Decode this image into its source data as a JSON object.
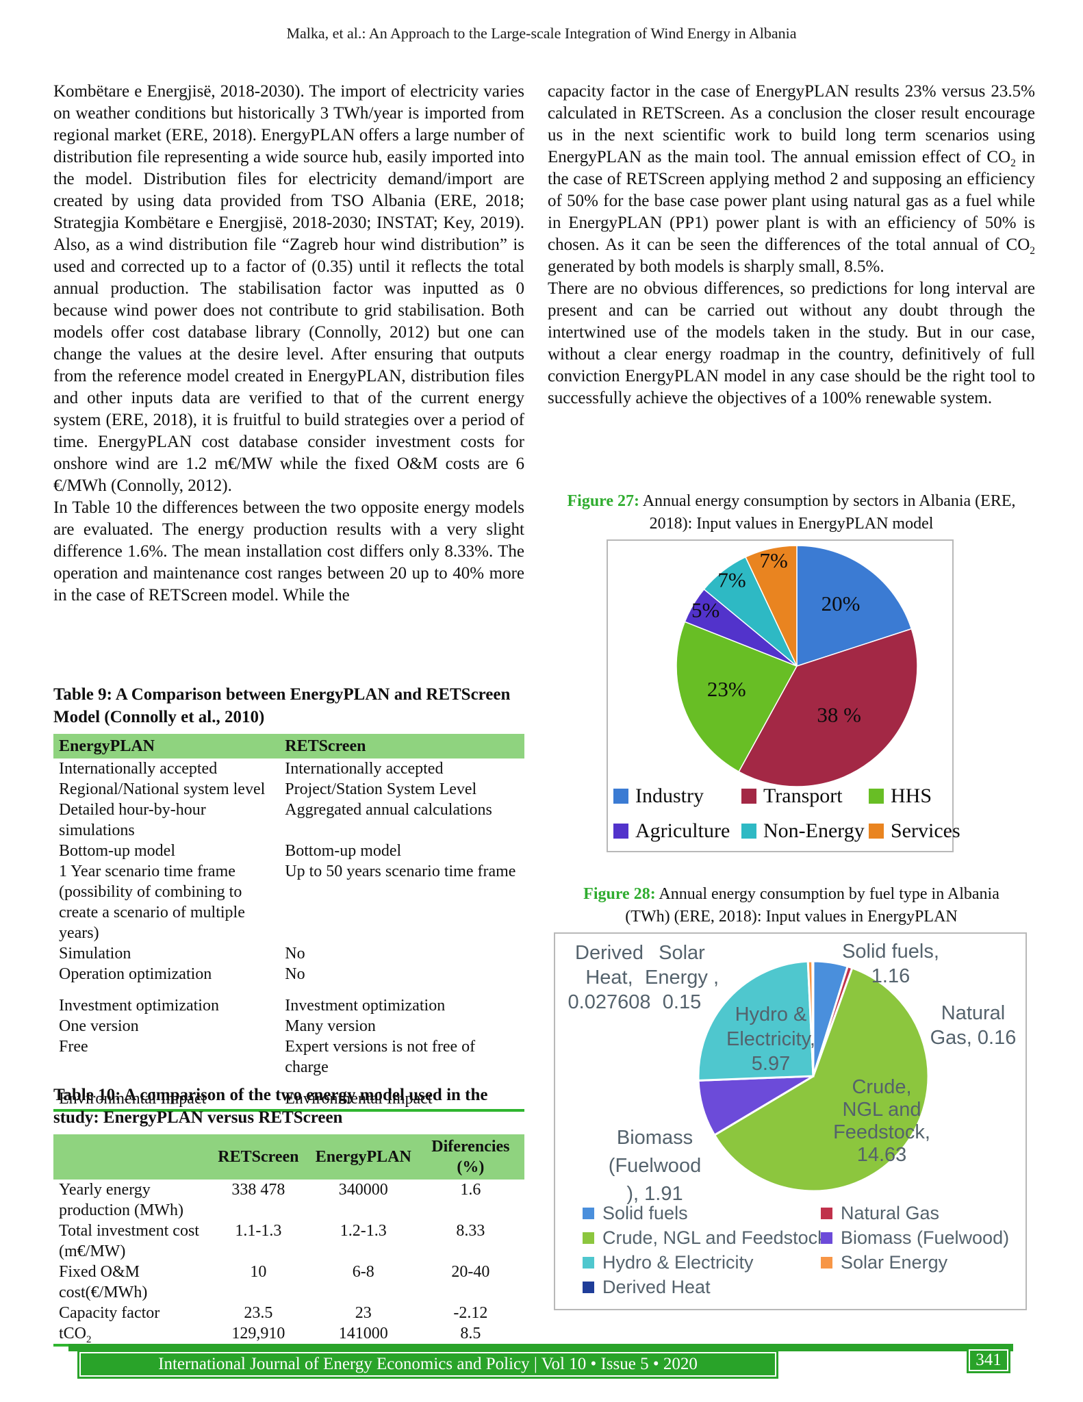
{
  "page": {
    "running_title": "Malka, et al.: An Approach to the Large-scale Integration of Wind Energy in Albania",
    "footer": {
      "journal_line": "International Journal of Energy Economics and Policy | Vol 10 • Issue 5 • 2020",
      "page_number": "341"
    }
  },
  "left_column": {
    "para1": "Kombëtare e Energjisë, 2018-2030). The import of electricity varies on weather conditions but historically 3 TWh/year is imported from regional market (ERE, 2018). EnergyPLAN offers a large number of distribution file representing a wide source hub, easily imported into the model. Distribution files for electricity demand/import are created by using data provided from TSO Albania (ERE, 2018; Strategjia Kombëtare e Energjisë, 2018-2030; INSTAT; Key, 2019). Also, as a wind distribution file “Zagreb hour wind distribution” is used and corrected up to a factor of (0.35) until it reflects the total annual production. The stabilisation factor was inputted as 0 because wind power does not contribute to grid stabilisation. Both models offer cost database library (Connolly, 2012) but one can change the values at the desire level. After ensuring that outputs from the reference model created in EnergyPLAN, distribution files and other inputs data are verified to that of the current energy system (ERE, 2018), it is fruitful to build strategies over a period of time. EnergyPLAN cost database consider investment costs for onshore wind are 1.2 m€/MW while the fixed O&M costs are 6 €/MWh (Connolly, 2012).",
    "para2": "In Table 10 the differences between the two opposite energy models are evaluated. The energy production results with a very slight difference 1.6%. The mean installation cost differs only 8.33%. The operation and maintenance cost ranges between 20 up to 40% more in the case of RETScreen model. While the"
  },
  "right_column": {
    "para1_parts": [
      "capacity factor in the case of EnergyPLAN results 23% versus 23.5% calculated in RETScreen. As a conclusion the closer result encourage us in the next scientific work to build long term scenarios using EnergyPLAN as the main tool. The annual emission effect of CO",
      "2",
      " in the case of RETScreen applying method 2 and supposing an efficiency of 50% for the base case power plant using natural gas as a fuel while in EnergyPLAN (PP1) power plant is with an efficiency of 50% is chosen. As it can be seen the differences of the total annual of CO",
      "2",
      " generated by both models is sharply small, 8.5%."
    ],
    "para2": "There are no obvious differences, so predictions for long interval are present and can be carried out without any doubt through the intertwined use of the models taken in the study. But in our case, without a clear energy roadmap in the country, definitively of full conviction EnergyPLAN model in any case should be the right tool to successfully achieve the objectives of a 100% renewable system."
  },
  "tables": {
    "table9": {
      "title": "Table 9: A Comparison between EnergyPLAN and RETScreen Model (Connolly et al., 2010)",
      "headers": [
        "EnergyPLAN",
        "RETScreen"
      ],
      "rows": [
        [
          "Internationally accepted",
          "Internationally accepted"
        ],
        [
          "Regional/National system level",
          "Project/Station System Level"
        ],
        [
          "Detailed hour-by-hour simulations",
          "Aggregated annual calculations"
        ],
        [
          "Bottom-up model",
          "Bottom-up model"
        ],
        [
          "1 Year scenario time frame (possibility of combining to create a scenario of multiple years)",
          "Up to 50 years scenario time frame"
        ],
        [
          "Simulation",
          "No"
        ],
        [
          "Operation optimization",
          "No"
        ],
        [
          "Investment optimization",
          "Investment optimization"
        ],
        [
          "One version",
          "Many version"
        ],
        [
          "Free",
          "Expert versions is not free of charge"
        ],
        [
          "Environmental Impact",
          "Environmental Impact"
        ]
      ],
      "gap_rows": [
        7,
        10
      ]
    },
    "table10": {
      "title": "Table 10: A comparison of the two energy model used in the study: EnergyPLAN versus RETScreen",
      "headers": [
        "",
        "RETScreen",
        "EnergyPLAN",
        "Diferencies (%)"
      ],
      "rows": [
        {
          "label": "Yearly energy production (MWh)",
          "label_sub": "",
          "values": [
            "338 478",
            "340000",
            "1.6"
          ]
        },
        {
          "label": "Total investment cost (m€/MW)",
          "label_sub": "",
          "values": [
            "1.1-1.3",
            "1.2-1.3",
            "8.33"
          ]
        },
        {
          "label": "Fixed O&M cost(€/MWh)",
          "label_sub": "",
          "values": [
            "10",
            "6-8",
            "20-40"
          ]
        },
        {
          "label": "Capacity factor",
          "label_sub": "",
          "values": [
            "23.5",
            "23",
            "-2.12"
          ]
        },
        {
          "label": "tCO",
          "label_sub": "2",
          "values": [
            "129,910",
            "141000",
            "8.5"
          ]
        }
      ]
    }
  },
  "figures": [
    {
      "caption_label": "Figure 27:",
      "caption_text": " Annual energy consumption by sectors in Albania (ERE, 2018): Input values in EnergyPLAN model"
    },
    {
      "caption_label": "Figure 28:",
      "caption_text": " Annual energy consumption by fuel type in Albania (TWh) (ERE, 2018): Input values in EnergyPLAN"
    }
  ],
  "chart_data": [
    {
      "type": "pie",
      "title": "Annual energy consumption by sectors in Albania (ERE, 2018): Input values in EnergyPLAN model",
      "unit": "%",
      "start_angle_deg": 0,
      "direction": "clockwise",
      "slices": [
        {
          "label": "Industry",
          "value": 20,
          "pct_label": "20%",
          "color": "#3B7BD3"
        },
        {
          "label": "Transport",
          "value": 38,
          "pct_label": "38 %",
          "color": "#A32845"
        },
        {
          "label": "HHS",
          "value": 23,
          "pct_label": "23%",
          "color": "#68BE25"
        },
        {
          "label": "Agriculture",
          "value": 5,
          "pct_label": "5%",
          "color": "#5233CB"
        },
        {
          "label": "Non-Energy",
          "value": 7,
          "pct_label": "7%",
          "color": "#2EB9C4"
        },
        {
          "label": "Services",
          "value": 7,
          "pct_label": "7%",
          "color": "#E98420"
        }
      ],
      "legend_position": "bottom",
      "legend_rows": [
        [
          "Industry",
          "Transport",
          "HHS"
        ],
        [
          "Agriculture",
          "Non-Energy",
          "Services"
        ]
      ]
    },
    {
      "type": "pie",
      "title": "Annual energy consumption by fuel type in Albania (TWh) (ERE, 2018): Input values in EnergyPLAN",
      "unit": "TWh",
      "start_angle_deg": 0,
      "direction": "clockwise",
      "slices": [
        {
          "label": "Solid fuels",
          "value": 1.16,
          "color": "#4A8FDC"
        },
        {
          "label": "Natural Gas",
          "value": 0.16,
          "color": "#C0314B"
        },
        {
          "label": "Crude, NGL and Feedstock",
          "value": 14.63,
          "color": "#8CC63E"
        },
        {
          "label": "Biomass (Fuelwood)",
          "value": 1.91,
          "color": "#6C4BD9"
        },
        {
          "label": "Hydro & Electricity",
          "value": 5.97,
          "color": "#4FC7CE"
        },
        {
          "label": "Solar Energy",
          "value": 0.15,
          "color": "#F79646"
        },
        {
          "label": "Derived Heat",
          "value": 0.027608,
          "color": "#1F3D99"
        }
      ],
      "callout_labels": {
        "derived_heat": [
          "Derived",
          "Heat,",
          "0.027608"
        ],
        "solar": [
          "Solar",
          "Energy ,",
          "0.15"
        ],
        "solid_fuels": [
          "Solid fuels,",
          "1.16"
        ],
        "natural_gas": [
          "Natural",
          "Gas, 0.16"
        ],
        "hydro": [
          "Hydro &",
          "Electricity,",
          "5.97"
        ],
        "crude": [
          "Crude,",
          "NGL and",
          "Feedstock,",
          "14.63"
        ],
        "biomass": [
          "Biomass",
          "(Fuelwood",
          "), 1.91"
        ]
      },
      "legend_position": "bottom",
      "legend_rows": [
        [
          "Solid fuels",
          "Natural Gas"
        ],
        [
          "Crude, NGL and Feedstock",
          "Biomass (Fuelwood)"
        ],
        [
          "Hydro & Electricity",
          "Solar Energy"
        ],
        [
          "Derived Heat"
        ]
      ]
    }
  ],
  "colors": {
    "footer_green": "#29A329",
    "table_header_green": "#8FD37F",
    "caption_green": "#2FAC2F",
    "figure_label_gray": "#54626C",
    "table_bottom_rule_green": "#2FB52F"
  }
}
